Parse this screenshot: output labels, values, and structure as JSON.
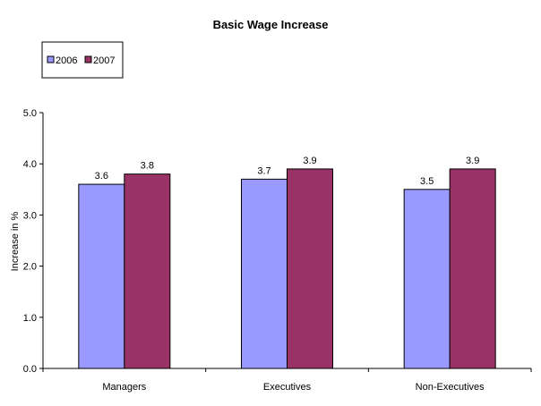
{
  "chart_data": {
    "type": "bar",
    "title": "Basic Wage Increase",
    "xlabel": "",
    "ylabel": "Increase in %",
    "categories": [
      "Managers",
      "Executives",
      "Non-Executives"
    ],
    "series": [
      {
        "name": "2006",
        "values": [
          3.6,
          3.7,
          3.5
        ],
        "color": "#9999ff"
      },
      {
        "name": "2007",
        "values": [
          3.8,
          3.9,
          3.9
        ],
        "color": "#993366"
      }
    ],
    "data_labels": [
      [
        "3.6",
        "3.7",
        "3.5"
      ],
      [
        "3.8",
        "3.9",
        "3.9"
      ]
    ],
    "ylim": [
      0,
      5
    ],
    "yticks": [
      "0.0",
      "1.0",
      "2.0",
      "3.0",
      "4.0",
      "5.0"
    ],
    "legend_position": "top-left",
    "grid": false
  }
}
